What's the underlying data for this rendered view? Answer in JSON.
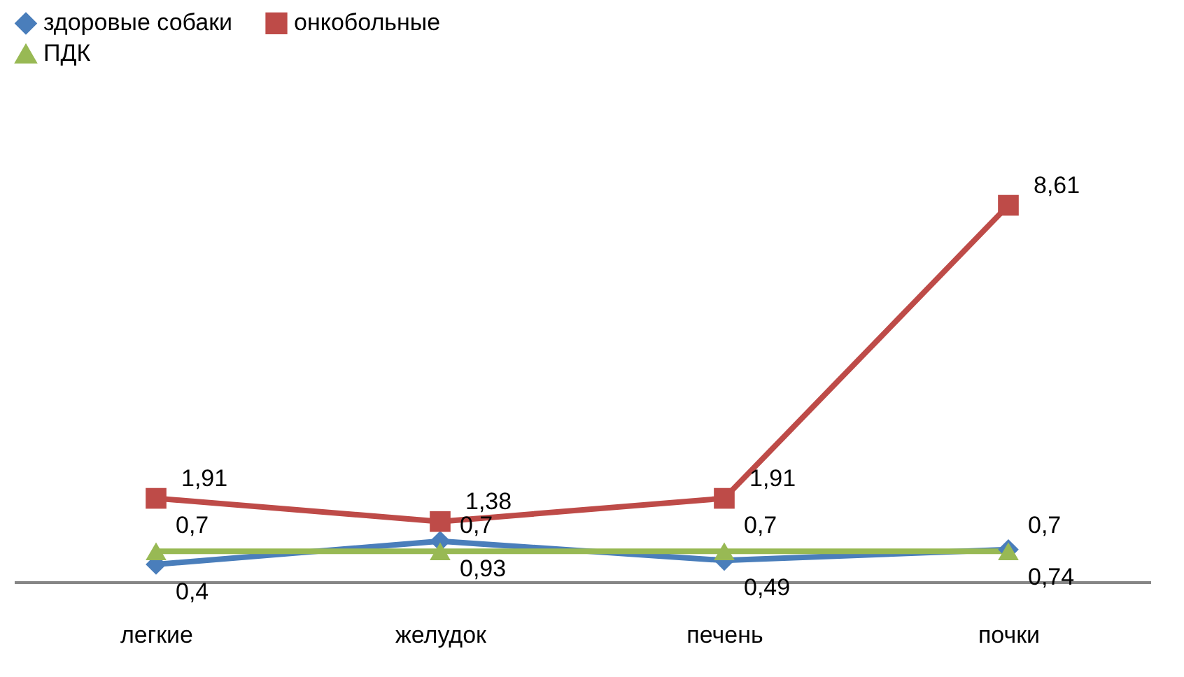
{
  "chart_data": {
    "type": "line",
    "categories": [
      "легкие",
      "желудок",
      "печень",
      "почки"
    ],
    "series": [
      {
        "name": "здоровые собаки",
        "color": "#4a7ebb",
        "marker": "diamond",
        "values": [
          0.4,
          0.93,
          0.49,
          0.74
        ],
        "value_labels": [
          "0,4",
          "0,93",
          "0,49",
          "0,74"
        ]
      },
      {
        "name": "онкобольные",
        "color": "#be4b48",
        "marker": "square",
        "values": [
          1.91,
          1.38,
          1.91,
          8.61
        ],
        "value_labels": [
          "1,91",
          "1,38",
          "1,91",
          "8,61"
        ]
      },
      {
        "name": "ПДК",
        "color": "#98b954",
        "marker": "triangle",
        "values": [
          0.7,
          0.7,
          0.7,
          0.7
        ],
        "value_labels": [
          "0,7",
          "0,7",
          "0,7",
          "0,7"
        ]
      }
    ],
    "legend": "top",
    "grid": false
  }
}
